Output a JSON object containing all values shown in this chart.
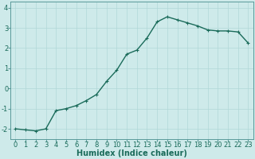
{
  "x": [
    0,
    1,
    2,
    3,
    4,
    5,
    6,
    7,
    8,
    9,
    10,
    11,
    12,
    13,
    14,
    15,
    16,
    17,
    18,
    19,
    20,
    21,
    22,
    23
  ],
  "y": [
    -2.0,
    -2.05,
    -2.1,
    -2.0,
    -1.1,
    -1.0,
    -0.85,
    -0.6,
    -0.3,
    0.35,
    0.9,
    1.7,
    1.9,
    2.5,
    3.3,
    3.55,
    3.4,
    3.25,
    3.1,
    2.9,
    2.85,
    2.85,
    2.8,
    2.25
  ],
  "line_color": "#1a6b5a",
  "marker": "+",
  "marker_color": "#1a6b5a",
  "bg_color": "#ceeaea",
  "grid_color": "#b0d8d8",
  "xlabel": "Humidex (Indice chaleur)",
  "xlabel_fontsize": 7,
  "xlabel_weight": "bold",
  "yticks": [
    -2,
    -1,
    0,
    1,
    2,
    3,
    4
  ],
  "xticks": [
    0,
    1,
    2,
    3,
    4,
    5,
    6,
    7,
    8,
    9,
    10,
    11,
    12,
    13,
    14,
    15,
    16,
    17,
    18,
    19,
    20,
    21,
    22,
    23
  ],
  "xlim": [
    -0.5,
    23.5
  ],
  "ylim": [
    -2.5,
    4.3
  ],
  "tick_fontsize": 6,
  "tick_color": "#1a6b5a",
  "axis_color": "#5a9a9a",
  "linewidth": 1.0,
  "markersize": 3,
  "markeredgewidth": 0.8
}
